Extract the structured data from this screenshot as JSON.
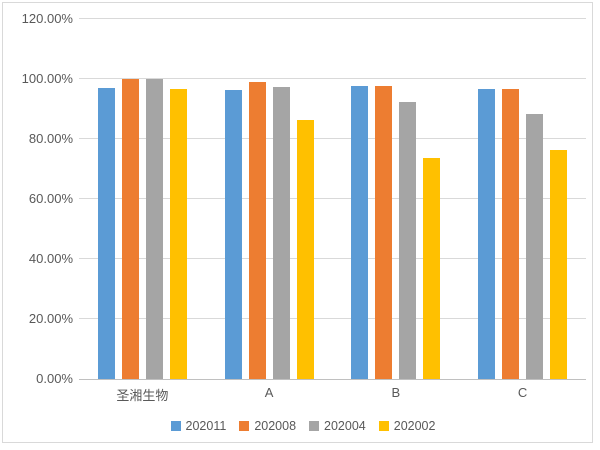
{
  "chart_data": {
    "type": "bar",
    "title": "",
    "xlabel": "",
    "ylabel": "",
    "categories": [
      "圣湘生物",
      "A",
      "B",
      "C"
    ],
    "series": [
      {
        "name": "202011",
        "color": "#5B9BD5",
        "values": [
          97.0,
          96.2,
          97.8,
          96.8
        ]
      },
      {
        "name": "202008",
        "color": "#ED7D31",
        "values": [
          100.0,
          99.0,
          97.8,
          96.8
        ]
      },
      {
        "name": "202004",
        "color": "#A5A5A5",
        "values": [
          100.0,
          97.3,
          92.4,
          88.2
        ]
      },
      {
        "name": "202002",
        "color": "#FFC000",
        "values": [
          96.8,
          86.4,
          73.8,
          76.4
        ]
      }
    ],
    "ylim": [
      0,
      120
    ],
    "ytick_step": 20,
    "ytick_labels": [
      "0.00%",
      "20.00%",
      "40.00%",
      "60.00%",
      "80.00%",
      "100.00%",
      "120.00%"
    ],
    "grid": true,
    "legend_position": "bottom",
    "legend_entries": [
      "202011",
      "202008",
      "202004",
      "202002"
    ]
  },
  "colors": {
    "background": "#FFFFFF",
    "border": "#D9D9D9",
    "gridline": "#D9D9D9",
    "axis_line": "#C0C0C0",
    "text": "#595959"
  }
}
